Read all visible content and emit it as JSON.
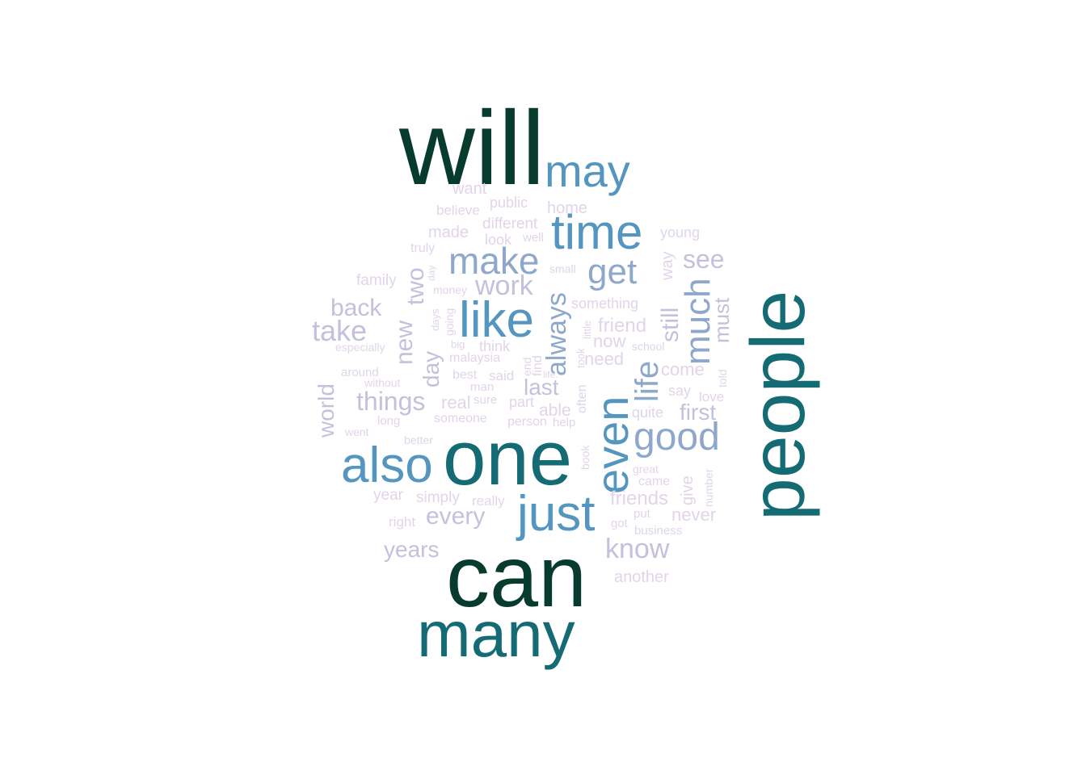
{
  "palette": {
    "t1": "#063b2e",
    "t2": "#146b74",
    "t3": "#5496bf",
    "t4": "#8ea8cc",
    "t5": "#c2c1de",
    "t6": "#e2d4ea"
  },
  "words": [
    {
      "text": "will",
      "tone": "t1",
      "rotated": false
    },
    {
      "text": "can",
      "tone": "t1",
      "rotated": false
    },
    {
      "text": "one",
      "tone": "t2",
      "rotated": false
    },
    {
      "text": "people",
      "tone": "t2",
      "rotated": true
    },
    {
      "text": "many",
      "tone": "t2",
      "rotated": false
    },
    {
      "text": "may",
      "tone": "t3",
      "rotated": false
    },
    {
      "text": "time",
      "tone": "t3",
      "rotated": false
    },
    {
      "text": "like",
      "tone": "t3",
      "rotated": false
    },
    {
      "text": "also",
      "tone": "t3",
      "rotated": false
    },
    {
      "text": "just",
      "tone": "t3",
      "rotated": false
    },
    {
      "text": "even",
      "tone": "t3",
      "rotated": true
    },
    {
      "text": "make",
      "tone": "t4",
      "rotated": false
    },
    {
      "text": "get",
      "tone": "t4",
      "rotated": false
    },
    {
      "text": "good",
      "tone": "t4",
      "rotated": false
    },
    {
      "text": "much",
      "tone": "t4",
      "rotated": true
    },
    {
      "text": "life",
      "tone": "t4",
      "rotated": true
    },
    {
      "text": "always",
      "tone": "t4",
      "rotated": true
    },
    {
      "text": "work",
      "tone": "t5",
      "rotated": false
    },
    {
      "text": "see",
      "tone": "t5",
      "rotated": false
    },
    {
      "text": "back",
      "tone": "t5",
      "rotated": false
    },
    {
      "text": "take",
      "tone": "t5",
      "rotated": false
    },
    {
      "text": "things",
      "tone": "t5",
      "rotated": false
    },
    {
      "text": "every",
      "tone": "t5",
      "rotated": false
    },
    {
      "text": "know",
      "tone": "t5",
      "rotated": false
    },
    {
      "text": "years",
      "tone": "t5",
      "rotated": false
    },
    {
      "text": "first",
      "tone": "t5",
      "rotated": false
    },
    {
      "text": "new",
      "tone": "t5",
      "rotated": true
    },
    {
      "text": "two",
      "tone": "t5",
      "rotated": true
    },
    {
      "text": "day",
      "tone": "t5",
      "rotated": true
    },
    {
      "text": "world",
      "tone": "t5",
      "rotated": true
    },
    {
      "text": "still",
      "tone": "t5",
      "rotated": true
    },
    {
      "text": "must",
      "tone": "t5",
      "rotated": true
    },
    {
      "text": "last",
      "tone": "t5",
      "rotated": false
    },
    {
      "text": "friend",
      "tone": "t6",
      "rotated": false
    },
    {
      "text": "friends",
      "tone": "t6",
      "rotated": false
    },
    {
      "text": "come",
      "tone": "t6",
      "rotated": false
    },
    {
      "text": "never",
      "tone": "t6",
      "rotated": false
    },
    {
      "text": "another",
      "tone": "t6",
      "rotated": false
    },
    {
      "text": "want",
      "tone": "t6",
      "rotated": false
    },
    {
      "text": "public",
      "tone": "t6",
      "rotated": false
    },
    {
      "text": "home",
      "tone": "t6",
      "rotated": false
    },
    {
      "text": "believe",
      "tone": "t6",
      "rotated": false
    },
    {
      "text": "different",
      "tone": "t6",
      "rotated": false
    },
    {
      "text": "made",
      "tone": "t6",
      "rotated": false
    },
    {
      "text": "look",
      "tone": "t6",
      "rotated": false
    },
    {
      "text": "well",
      "tone": "t6",
      "rotated": false
    },
    {
      "text": "young",
      "tone": "t6",
      "rotated": false
    },
    {
      "text": "truly",
      "tone": "t6",
      "rotated": false
    },
    {
      "text": "small",
      "tone": "t6",
      "rotated": false
    },
    {
      "text": "family",
      "tone": "t6",
      "rotated": false
    },
    {
      "text": "money",
      "tone": "t6",
      "rotated": false
    },
    {
      "text": "something",
      "tone": "t6",
      "rotated": false
    },
    {
      "text": "especially",
      "tone": "t6",
      "rotated": false
    },
    {
      "text": "big",
      "tone": "t6",
      "rotated": false
    },
    {
      "text": "think",
      "tone": "t6",
      "rotated": false
    },
    {
      "text": "malaysia",
      "tone": "t6",
      "rotated": false
    },
    {
      "text": "now",
      "tone": "t6",
      "rotated": false
    },
    {
      "text": "school",
      "tone": "t6",
      "rotated": false
    },
    {
      "text": "need",
      "tone": "t6",
      "rotated": false
    },
    {
      "text": "around",
      "tone": "t6",
      "rotated": false
    },
    {
      "text": "without",
      "tone": "t6",
      "rotated": false
    },
    {
      "text": "best",
      "tone": "t6",
      "rotated": false
    },
    {
      "text": "said",
      "tone": "t6",
      "rotated": false
    },
    {
      "text": "man",
      "tone": "t6",
      "rotated": false
    },
    {
      "text": "life.",
      "tone": "t6",
      "rotated": false
    },
    {
      "text": "say",
      "tone": "t6",
      "rotated": false
    },
    {
      "text": "love",
      "tone": "t6",
      "rotated": false
    },
    {
      "text": "real",
      "tone": "t6",
      "rotated": false
    },
    {
      "text": "sure",
      "tone": "t6",
      "rotated": false
    },
    {
      "text": "part",
      "tone": "t6",
      "rotated": false
    },
    {
      "text": "able",
      "tone": "t6",
      "rotated": false
    },
    {
      "text": "quite",
      "tone": "t6",
      "rotated": false
    },
    {
      "text": "long",
      "tone": "t6",
      "rotated": false
    },
    {
      "text": "someone",
      "tone": "t6",
      "rotated": false
    },
    {
      "text": "person",
      "tone": "t6",
      "rotated": false
    },
    {
      "text": "help",
      "tone": "t6",
      "rotated": false
    },
    {
      "text": "went",
      "tone": "t6",
      "rotated": false
    },
    {
      "text": "better",
      "tone": "t6",
      "rotated": false
    },
    {
      "text": "great",
      "tone": "t6",
      "rotated": false
    },
    {
      "text": "came",
      "tone": "t6",
      "rotated": false
    },
    {
      "text": "year",
      "tone": "t6",
      "rotated": false
    },
    {
      "text": "simply",
      "tone": "t6",
      "rotated": false
    },
    {
      "text": "really",
      "tone": "t6",
      "rotated": false
    },
    {
      "text": "right",
      "tone": "t6",
      "rotated": false
    },
    {
      "text": "put",
      "tone": "t6",
      "rotated": false
    },
    {
      "text": "got",
      "tone": "t6",
      "rotated": false
    },
    {
      "text": "business",
      "tone": "t6",
      "rotated": false
    },
    {
      "text": "way",
      "tone": "t6",
      "rotated": true
    },
    {
      "text": "day",
      "tone": "t6",
      "rotated": true
    },
    {
      "text": "days",
      "tone": "t6",
      "rotated": true
    },
    {
      "text": "going",
      "tone": "t6",
      "rotated": true
    },
    {
      "text": "find",
      "tone": "t6",
      "rotated": true
    },
    {
      "text": "end",
      "tone": "t6",
      "rotated": true
    },
    {
      "text": "little",
      "tone": "t6",
      "rotated": true
    },
    {
      "text": "took",
      "tone": "t6",
      "rotated": true
    },
    {
      "text": "often",
      "tone": "t6",
      "rotated": true
    },
    {
      "text": "told",
      "tone": "t6",
      "rotated": true
    },
    {
      "text": "book",
      "tone": "t6",
      "rotated": true
    },
    {
      "text": "give",
      "tone": "t6",
      "rotated": true
    },
    {
      "text": "number",
      "tone": "t6",
      "rotated": true
    }
  ]
}
